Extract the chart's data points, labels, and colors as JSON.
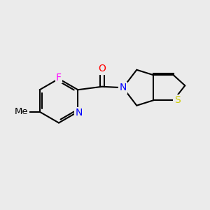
{
  "background_color": "#ebebeb",
  "bond_color": "#000000",
  "bond_width": 1.5,
  "font_size": 10,
  "atoms": {
    "F": {
      "color": "#ff00ff",
      "symbol": "F"
    },
    "N": {
      "color": "#0000ff",
      "symbol": "N"
    },
    "O": {
      "color": "#ff0000",
      "symbol": "O"
    },
    "S": {
      "color": "#cccc00",
      "symbol": "S"
    },
    "Me": {
      "color": "#000000",
      "symbol": "Me"
    }
  }
}
